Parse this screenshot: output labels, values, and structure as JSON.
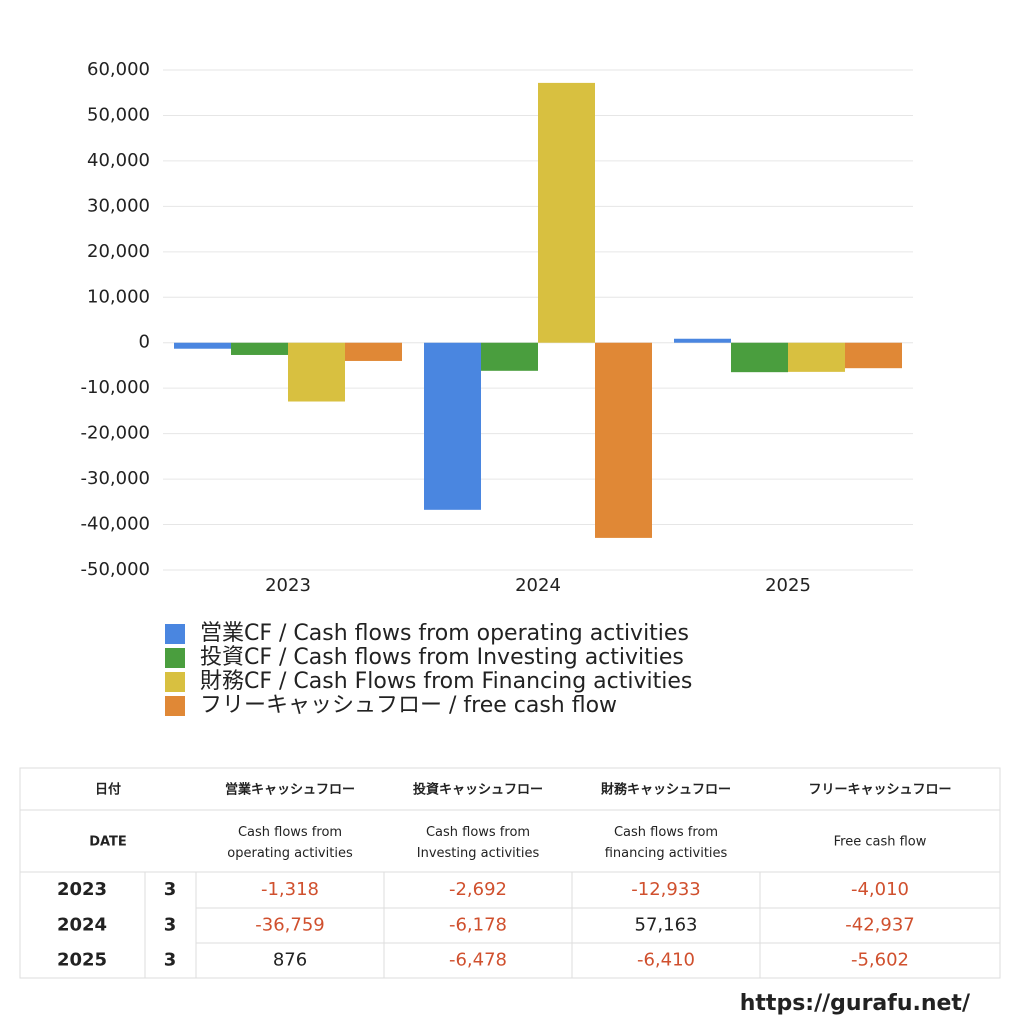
{
  "chart_data": {
    "type": "bar",
    "categories": [
      "2023",
      "2024",
      "2025"
    ],
    "series": [
      {
        "name": "営業CF / Cash flows from operating activities",
        "color": "#4a86e0",
        "values": [
          -1318,
          -36759,
          876
        ]
      },
      {
        "name": "投資CF / Cash flows from Investing activities",
        "color": "#4a9e3e",
        "values": [
          -2692,
          -6178,
          -6478
        ]
      },
      {
        "name": "財務CF / Cash Flows from Financing activities",
        "color": "#d8c040",
        "values": [
          -12933,
          57163,
          -6410
        ]
      },
      {
        "name": "フリーキャッシュフロー / free cash flow",
        "color": "#e08836",
        "values": [
          -4010,
          -42937,
          -5602
        ]
      }
    ],
    "ylim": [
      -50000,
      60000
    ],
    "yticks": [
      {
        "value": -50000,
        "label": "-50,000"
      },
      {
        "value": -40000,
        "label": "-40,000"
      },
      {
        "value": -30000,
        "label": "-30,000"
      },
      {
        "value": -20000,
        "label": "-20,000"
      },
      {
        "value": -10000,
        "label": "-10,000"
      },
      0,
      {
        "value": 10000,
        "label": "10,000"
      },
      {
        "value": 20000,
        "label": "20,000"
      },
      {
        "value": 30000,
        "label": "30,000"
      },
      {
        "value": 40000,
        "label": "40,000"
      },
      {
        "value": 50000,
        "label": "50,000"
      },
      {
        "value": 60000,
        "label": "60,000"
      }
    ],
    "grid": true
  },
  "table": {
    "header_ja": {
      "date": "日付",
      "columns": [
        "営業キャッシュフロー",
        "投資キャッシュフロー",
        "財務キャッシュフロー",
        "フリーキャッシュフロー"
      ]
    },
    "header_en": {
      "date": "DATE",
      "columns": [
        "Cash flows from operating activities",
        "Cash flows from Investing activities",
        "Cash flows from financing activities",
        "Free cash flow"
      ]
    },
    "rows": [
      [
        "2023",
        "3",
        "-1,318",
        "-2,692",
        "-12,933",
        "-4,010"
      ],
      [
        "2024",
        "3",
        "-36,759",
        "-6,178",
        "57,163",
        "-42,937"
      ],
      [
        "2025",
        "3",
        "876",
        "-6,478",
        "-6,410",
        "-5,602"
      ]
    ]
  },
  "footer": "https://gurafu.net/"
}
